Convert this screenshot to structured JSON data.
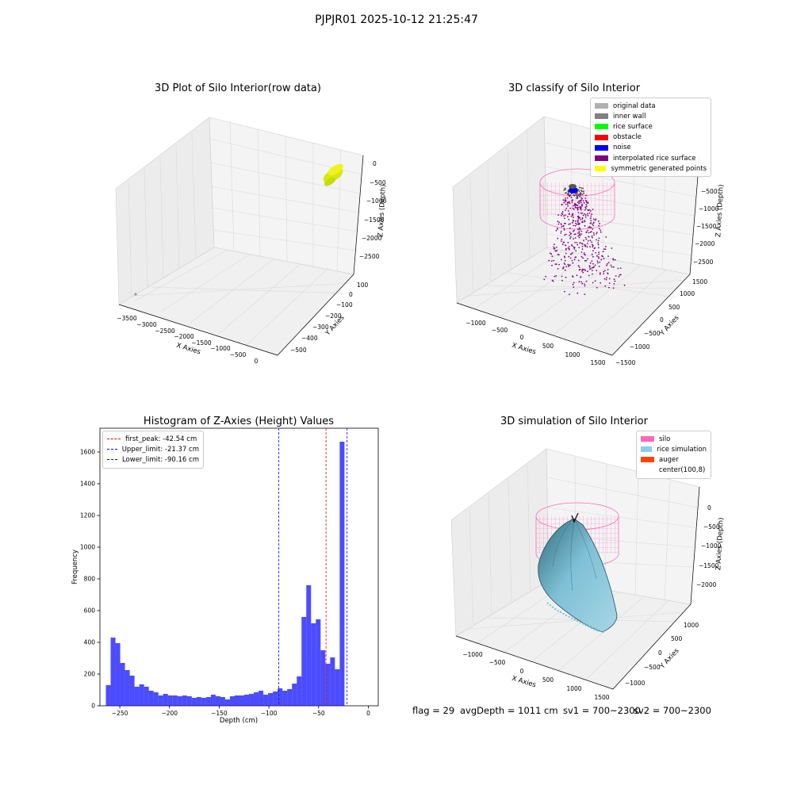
{
  "suptitle": "PJPJR01 2025-10-12 21:25:47",
  "chart_data": [
    {
      "type": "scatter3d",
      "title": "3D Plot of Silo Interior(row data)",
      "xlabel": "X Axies",
      "ylabel": "Y Axies",
      "zlabel": "Z Axies (Depth)",
      "x_ticks": [
        "−3500",
        "−3000",
        "−2500",
        "−2000",
        "−1500",
        "−1000",
        "−500",
        "0"
      ],
      "y_ticks": [
        "100",
        "0",
        "−100",
        "−200",
        "−300",
        "−400",
        "−500"
      ],
      "z_ticks": [
        "0",
        "−500",
        "−1000",
        "−1500",
        "−2000",
        "−2500"
      ],
      "series": [
        {
          "color": "#d4e010",
          "description_points": "dense cluster near x≈-300..0, y≈0..100, z≈-800..-400"
        }
      ]
    },
    {
      "type": "scatter3d",
      "title": "3D classify of Silo Interior",
      "xlabel": "X Axies",
      "ylabel": "Y Axies",
      "zlabel": "Z Axies (Depth)",
      "x_ticks": [
        "−1000",
        "−500",
        "0",
        "500",
        "1000",
        "1500"
      ],
      "y_ticks": [
        "1500",
        "1000",
        "500",
        "0",
        "−500",
        "−1000",
        "−1500"
      ],
      "z_ticks": [
        "−500",
        "−1000",
        "−1500",
        "−2000",
        "−2500"
      ],
      "legend": [
        {
          "label": "original data",
          "color": "#b0b0b0"
        },
        {
          "label": "inner wall",
          "color": "#808080"
        },
        {
          "label": "rice surface",
          "color": "#00ff00"
        },
        {
          "label": "obstacle",
          "color": "#ff0000"
        },
        {
          "label": "noise",
          "color": "#0000ff"
        },
        {
          "label": "interpolated rice surface",
          "color": "#800080"
        },
        {
          "label": "symmetric generated points",
          "color": "#ffff00"
        }
      ]
    },
    {
      "type": "bar",
      "title": "Histogram of Z-Axies (Height) Values",
      "xlabel": "Depth (cm)",
      "ylabel": "Frequency",
      "xlim": [
        -270,
        10
      ],
      "ylim": [
        0,
        1750
      ],
      "x_ticks": [
        -250,
        -200,
        -150,
        -100,
        -50,
        0
      ],
      "y_ticks": [
        0,
        200,
        400,
        600,
        800,
        1000,
        1200,
        1400,
        1600
      ],
      "bin_start": -264,
      "bin_width": 4.8,
      "bar_color": "#0000ff",
      "values": [
        130,
        430,
        395,
        270,
        225,
        190,
        120,
        135,
        120,
        95,
        85,
        65,
        75,
        65,
        65,
        60,
        65,
        60,
        50,
        55,
        50,
        55,
        70,
        60,
        55,
        40,
        60,
        65,
        65,
        70,
        75,
        85,
        95,
        70,
        80,
        90,
        110,
        95,
        105,
        140,
        185,
        560,
        760,
        520,
        545,
        350,
        265,
        305,
        230,
        1665
      ],
      "lines": [
        {
          "label": "first_peak: -42.54 cm",
          "x": -42.54,
          "color": "#ff0000"
        },
        {
          "label": "Upper_limit: -21.37 cm",
          "x": -21.37,
          "color": "#0000ff"
        },
        {
          "label": "Lower_limit: -90.16 cm",
          "x": -90.16,
          "color": "#0000ff"
        }
      ]
    },
    {
      "type": "surface3d",
      "title": "3D simulation of Silo Interior",
      "xlabel": "X Axies",
      "ylabel": "Y Axies",
      "zlabel": "Z Axies (Depth)",
      "x_ticks": [
        "−1000",
        "−500",
        "0",
        "500",
        "1000",
        "1500"
      ],
      "y_ticks": [
        "1000",
        "500",
        "0",
        "−500",
        "−1000"
      ],
      "z_ticks": [
        "0",
        "−500",
        "−1000",
        "−1500",
        "−2000"
      ],
      "legend": [
        {
          "label": "silo",
          "color": "#ff69b4"
        },
        {
          "label": "rice simulation",
          "color": "#87ceeb"
        },
        {
          "label": "auger",
          "color": "#ff4500"
        },
        {
          "label": "center(100,8)",
          "color": ""
        }
      ]
    }
  ],
  "footer": {
    "flag": "flag = 29",
    "avg": "avgDepth = 1011 cm",
    "sv1": "sv1 = 700~2300",
    "sv2": "sv2 = 700~2300"
  }
}
